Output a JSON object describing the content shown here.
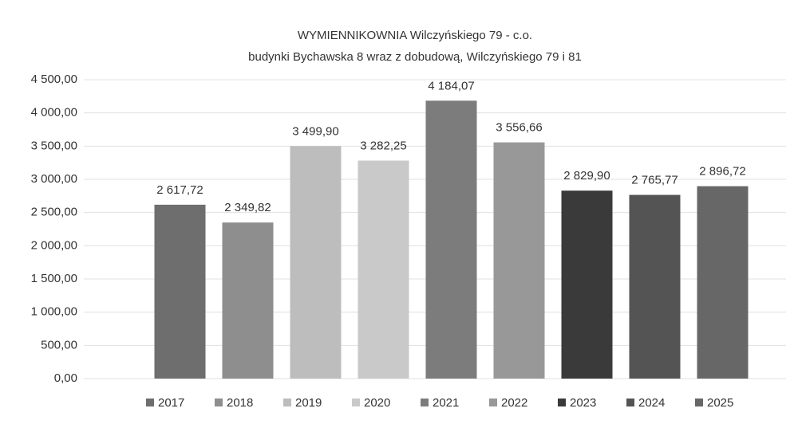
{
  "chart_data": {
    "type": "bar",
    "title": [
      "WYMIENNIKOWNIA Wilczyńskiego 79 - c.o.",
      "budynki Bychawska 8 wraz z dobudową, Wilczyńskiego 79 i 81"
    ],
    "categories": [
      "2017",
      "2018",
      "2019",
      "2020",
      "2021",
      "2022",
      "2023",
      "2024",
      "2025"
    ],
    "values": [
      2617.72,
      2349.82,
      3499.9,
      3282.25,
      4184.07,
      3556.66,
      2829.9,
      2765.77,
      2896.72
    ],
    "value_labels": [
      "2 617,72",
      "2 349,82",
      "3 499,90",
      "3 282,25",
      "4 184,07",
      "3 556,66",
      "2 829,90",
      "2 765,77",
      "2 896,72"
    ],
    "colors": [
      "#6e6e6e",
      "#8e8e8e",
      "#bdbdbd",
      "#c9c9c9",
      "#7c7c7c",
      "#989898",
      "#3a3a3a",
      "#545454",
      "#676767"
    ],
    "ylim": [
      0,
      4500
    ],
    "yticks": [
      {
        "value": 0,
        "label": "0,00"
      },
      {
        "value": 500,
        "label": "500,00"
      },
      {
        "value": 1000,
        "label": "1 000,00"
      },
      {
        "value": 1500,
        "label": "1 500,00"
      },
      {
        "value": 2000,
        "label": "2 000,00"
      },
      {
        "value": 2500,
        "label": "2 500,00"
      },
      {
        "value": 3000,
        "label": "3 000,00"
      },
      {
        "value": 3500,
        "label": "3 500,00"
      },
      {
        "value": 4000,
        "label": "4 000,00"
      },
      {
        "value": 4500,
        "label": "4 500,00"
      }
    ],
    "grid": true,
    "legend": "bottom"
  }
}
